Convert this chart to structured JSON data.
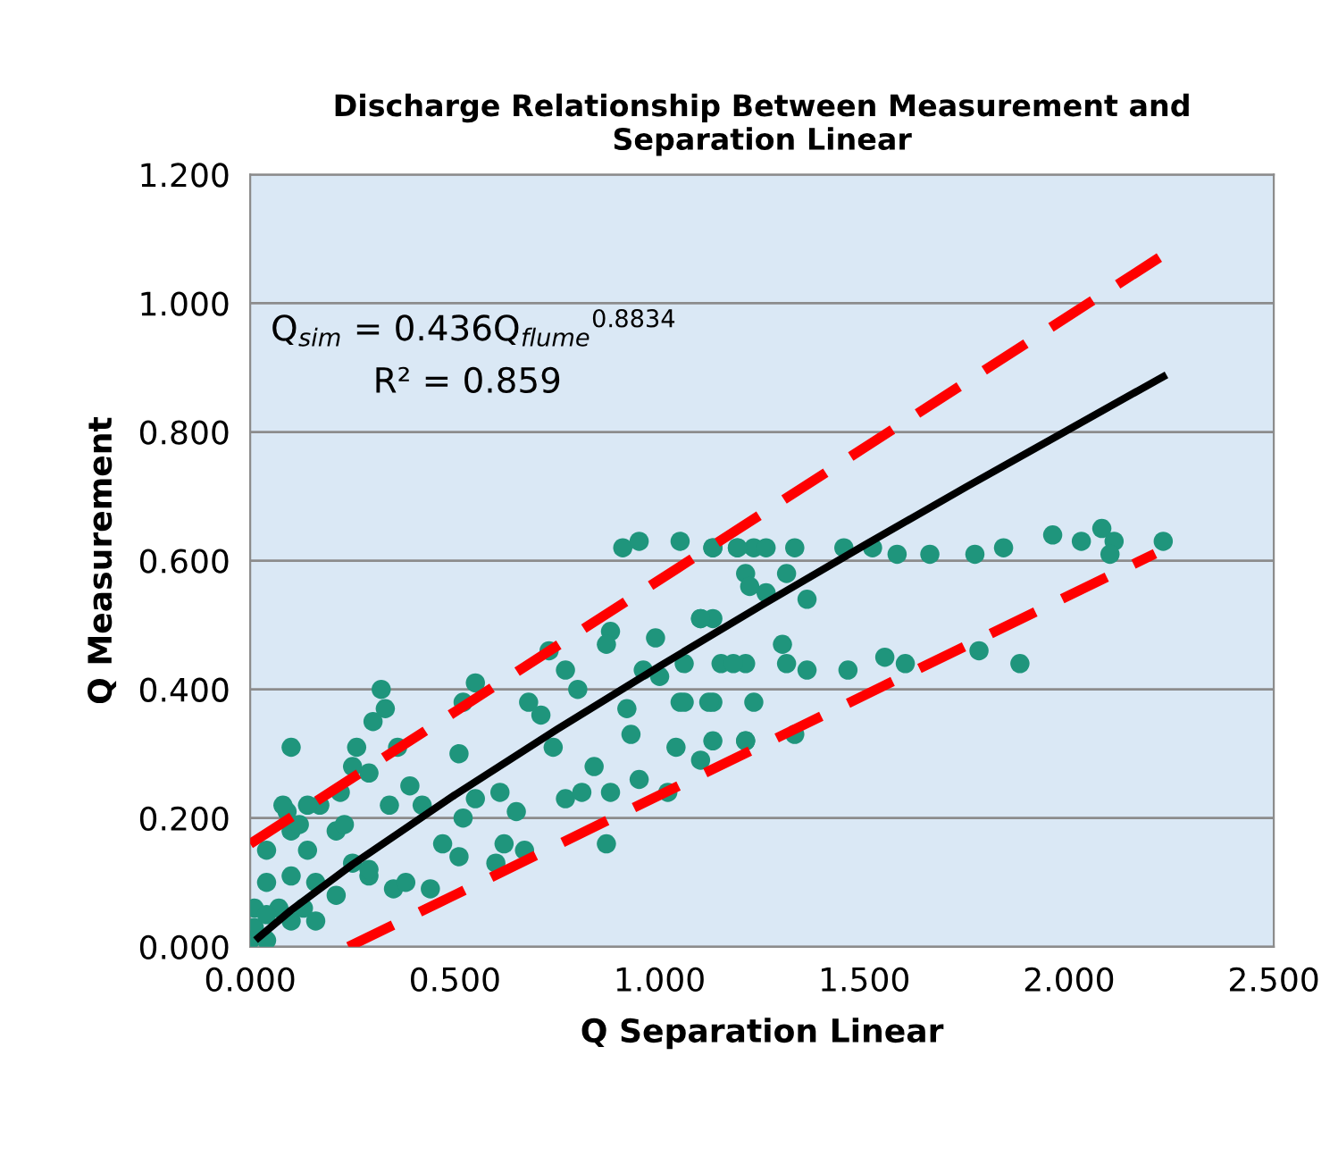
{
  "chart_data": {
    "type": "scatter",
    "title": "Discharge Relationship Between Measurement and\nSeparation Linear",
    "xlabel": "Q Separation Linear",
    "ylabel": "Q Measurement",
    "xlim": [
      0,
      2.5
    ],
    "ylim": [
      0,
      1.2
    ],
    "xticks": [
      {
        "value": 0,
        "label": "0.000"
      },
      {
        "value": 0.5,
        "label": "0.500"
      },
      {
        "value": 1.0,
        "label": "1.000"
      },
      {
        "value": 1.5,
        "label": "1.500"
      },
      {
        "value": 2.0,
        "label": "2.000"
      },
      {
        "value": 2.5,
        "label": "2.500"
      }
    ],
    "yticks": [
      {
        "value": 0,
        "label": "0.000"
      },
      {
        "value": 0.2,
        "label": "0.200"
      },
      {
        "value": 0.4,
        "label": "0.400"
      },
      {
        "value": 0.6,
        "label": "0.600"
      },
      {
        "value": 0.8,
        "label": "0.800"
      },
      {
        "value": 1.0,
        "label": "1.000"
      },
      {
        "value": 1.2,
        "label": "1.200"
      }
    ],
    "grid": "y",
    "legend": false,
    "annotations": [
      "Q$_{sim}$ = 0.436Q$_{flume}$$^{0.8834}$",
      "R² = 0.859"
    ],
    "series": [
      {
        "type": "scatter",
        "marker": "circle",
        "color": "#1f957c",
        "x": [
          0.91,
          0.95,
          1.05,
          1.13,
          1.19,
          1.23,
          1.13,
          1.19,
          1.26,
          1.33,
          1.45,
          1.52,
          1.58,
          1.66,
          1.77,
          1.84,
          1.96,
          2.03,
          2.08,
          2.11,
          2.1,
          2.23,
          1.21,
          1.31,
          1.26,
          1.36,
          1.1,
          1.13,
          1.06,
          1.15,
          1.21,
          1.3,
          1.31,
          1.36,
          1.46,
          1.55,
          1.6,
          1.78,
          1.88,
          1.05,
          1.13,
          1.23,
          1.13,
          1.21,
          1.33,
          1.1,
          0.88,
          0.99,
          1.1,
          0.87,
          1.22,
          0.73,
          0.77,
          0.8,
          0.68,
          0.71,
          0.55,
          0.52,
          0.32,
          0.33,
          0.3,
          0.36,
          0.26,
          0.51,
          0.1,
          0.09,
          0.17,
          0.29,
          0.39,
          0.34,
          0.42,
          0.52,
          0.55,
          0.61,
          0.65,
          0.77,
          0.81,
          0.88,
          0.95,
          1.02,
          0.74,
          0.84,
          0.92,
          0.93,
          1.04,
          1.12,
          1.06,
          0.96,
          1.18,
          1.21,
          1.0,
          0.47,
          0.51,
          0.6,
          0.62,
          0.67,
          0.87,
          0.35,
          0.38,
          0.44,
          0.29,
          0.25,
          0.08,
          0.04,
          0.1,
          0.14,
          0.21,
          0.23,
          0.25,
          0.29,
          0.04,
          0.1,
          0.16,
          0.21,
          0.01,
          0.07,
          0.13,
          0.16,
          0.01,
          0.0,
          0.04,
          0.1,
          0.04,
          0.14,
          0.22,
          0.12
        ],
        "values": [
          0.62,
          0.63,
          0.63,
          0.62,
          0.62,
          0.62,
          0.62,
          0.62,
          0.62,
          0.62,
          0.62,
          0.62,
          0.61,
          0.61,
          0.61,
          0.62,
          0.64,
          0.63,
          0.65,
          0.63,
          0.61,
          0.63,
          0.58,
          0.58,
          0.55,
          0.54,
          0.51,
          0.51,
          0.44,
          0.44,
          0.44,
          0.47,
          0.44,
          0.43,
          0.43,
          0.45,
          0.44,
          0.46,
          0.44,
          0.38,
          0.38,
          0.38,
          0.32,
          0.32,
          0.33,
          0.29,
          0.49,
          0.48,
          0.51,
          0.47,
          0.56,
          0.46,
          0.43,
          0.4,
          0.38,
          0.36,
          0.41,
          0.38,
          0.4,
          0.37,
          0.35,
          0.31,
          0.31,
          0.3,
          0.31,
          0.21,
          0.22,
          0.27,
          0.25,
          0.22,
          0.22,
          0.2,
          0.23,
          0.24,
          0.21,
          0.23,
          0.24,
          0.24,
          0.26,
          0.24,
          0.31,
          0.28,
          0.37,
          0.33,
          0.31,
          0.38,
          0.38,
          0.43,
          0.44,
          0.32,
          0.42,
          0.16,
          0.14,
          0.13,
          0.16,
          0.15,
          0.16,
          0.09,
          0.1,
          0.09,
          0.11,
          0.28,
          0.22,
          0.15,
          0.18,
          0.15,
          0.18,
          0.19,
          0.13,
          0.12,
          0.1,
          0.11,
          0.1,
          0.08,
          0.06,
          0.06,
          0.06,
          0.04,
          0.03,
          0.01,
          0.01,
          0.04,
          0.05,
          0.22,
          0.24,
          0.19
        ]
      },
      {
        "type": "line",
        "color": "#000000",
        "line_style": "solid",
        "marker": "none",
        "x": [
          0.02,
          0.1,
          0.25,
          0.5,
          0.75,
          1.0,
          1.25,
          1.5,
          1.75,
          2.0,
          2.23
        ],
        "values": [
          0.014,
          0.057,
          0.128,
          0.236,
          0.338,
          0.436,
          0.531,
          0.624,
          0.715,
          0.804,
          0.886
        ]
      },
      {
        "type": "line",
        "color": "#ff0000",
        "line_style": "dashed",
        "marker": "none",
        "x": [
          0.0,
          2.23
        ],
        "values": [
          0.16,
          1.075
        ]
      },
      {
        "type": "line",
        "color": "#ff0000",
        "line_style": "dashed",
        "marker": "none",
        "x": [
          0.24,
          2.21
        ],
        "values": [
          0.0,
          0.611
        ]
      }
    ]
  }
}
